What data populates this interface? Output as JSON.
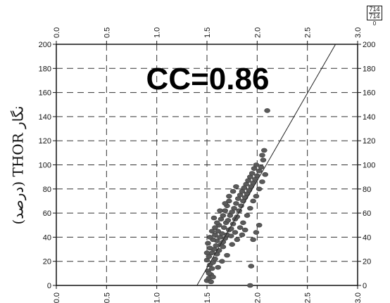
{
  "chart_data": {
    "type": "scatter",
    "title": "",
    "annotation": "CC=0.86",
    "ylabel": "نگار THOR (درصد)",
    "xlabel": "",
    "x_ticks": [
      "0.0",
      "0.5",
      "1.0",
      "1.5",
      "2.0",
      "2.5",
      "3.0"
    ],
    "y_ticks": [
      "0",
      "20",
      "40",
      "60",
      "80",
      "100",
      "120",
      "140",
      "160",
      "180",
      "200"
    ],
    "xlim": [
      0,
      3
    ],
    "ylim": [
      0,
      200
    ],
    "grid": true,
    "point_color": "#5a5a5a",
    "fit_line": {
      "x1": 1.4,
      "y1": 0,
      "x2": 2.78,
      "y2": 200
    },
    "points": [
      [
        1.5,
        4
      ],
      [
        1.52,
        6
      ],
      [
        1.54,
        9
      ],
      [
        1.51,
        12
      ],
      [
        1.55,
        14
      ],
      [
        1.53,
        17
      ],
      [
        1.56,
        19
      ],
      [
        1.5,
        21
      ],
      [
        1.52,
        24
      ],
      [
        1.58,
        22
      ],
      [
        1.55,
        27
      ],
      [
        1.6,
        26
      ],
      [
        1.57,
        30
      ],
      [
        1.53,
        31
      ],
      [
        1.62,
        29
      ],
      [
        1.59,
        33
      ],
      [
        1.51,
        35
      ],
      [
        1.64,
        34
      ],
      [
        1.6,
        37
      ],
      [
        1.66,
        36
      ],
      [
        1.56,
        38
      ],
      [
        1.63,
        40
      ],
      [
        1.68,
        39
      ],
      [
        1.58,
        42
      ],
      [
        1.65,
        43
      ],
      [
        1.7,
        42
      ],
      [
        1.61,
        45
      ],
      [
        1.72,
        46
      ],
      [
        1.67,
        48
      ],
      [
        1.74,
        47
      ],
      [
        1.62,
        50
      ],
      [
        1.69,
        52
      ],
      [
        1.76,
        51
      ],
      [
        1.64,
        55
      ],
      [
        1.71,
        54
      ],
      [
        1.78,
        55
      ],
      [
        1.66,
        58
      ],
      [
        1.73,
        58
      ],
      [
        1.8,
        57
      ],
      [
        1.68,
        62
      ],
      [
        1.75,
        61
      ],
      [
        1.82,
        62
      ],
      [
        1.7,
        66
      ],
      [
        1.77,
        64
      ],
      [
        1.84,
        66
      ],
      [
        1.72,
        70
      ],
      [
        1.79,
        68
      ],
      [
        1.86,
        70
      ],
      [
        1.81,
        72
      ],
      [
        1.88,
        73
      ],
      [
        1.83,
        75
      ],
      [
        1.9,
        76
      ],
      [
        1.85,
        78
      ],
      [
        1.92,
        79
      ],
      [
        1.87,
        81
      ],
      [
        1.94,
        82
      ],
      [
        1.89,
        84
      ],
      [
        1.96,
        85
      ],
      [
        1.91,
        87
      ],
      [
        1.98,
        88
      ],
      [
        1.93,
        90
      ],
      [
        2.0,
        91
      ],
      [
        1.95,
        93
      ],
      [
        2.02,
        95
      ],
      [
        1.97,
        97
      ],
      [
        2.04,
        98
      ],
      [
        1.99,
        100
      ],
      [
        2.06,
        104
      ],
      [
        2.05,
        108
      ],
      [
        2.07,
        112
      ],
      [
        2.1,
        145
      ],
      [
        1.55,
        45
      ],
      [
        1.58,
        48
      ],
      [
        1.6,
        52
      ],
      [
        1.57,
        56
      ],
      [
        1.5,
        27
      ],
      [
        1.53,
        40
      ],
      [
        1.66,
        32
      ],
      [
        1.74,
        41
      ],
      [
        1.78,
        44
      ],
      [
        1.83,
        48
      ],
      [
        1.86,
        52
      ],
      [
        1.9,
        58
      ],
      [
        1.93,
        64
      ],
      [
        1.96,
        70
      ],
      [
        1.99,
        74
      ],
      [
        2.02,
        80
      ],
      [
        2.05,
        86
      ],
      [
        2.08,
        92
      ],
      [
        1.63,
        62
      ],
      [
        1.68,
        68
      ],
      [
        1.72,
        74
      ],
      [
        1.76,
        78
      ],
      [
        1.79,
        82
      ],
      [
        1.52,
        10
      ],
      [
        1.54,
        3
      ],
      [
        1.56,
        7
      ],
      [
        1.61,
        15
      ],
      [
        1.65,
        20
      ],
      [
        1.7,
        25
      ],
      [
        1.96,
        38
      ],
      [
        1.99,
        44
      ],
      [
        2.02,
        50
      ],
      [
        1.94,
        16
      ],
      [
        1.93,
        0
      ],
      [
        1.75,
        34
      ],
      [
        1.8,
        38
      ],
      [
        1.85,
        42
      ],
      [
        1.88,
        46
      ]
    ]
  },
  "badge": {
    "top": "714",
    "bottom": "714",
    "left": "0",
    "under": "0"
  }
}
